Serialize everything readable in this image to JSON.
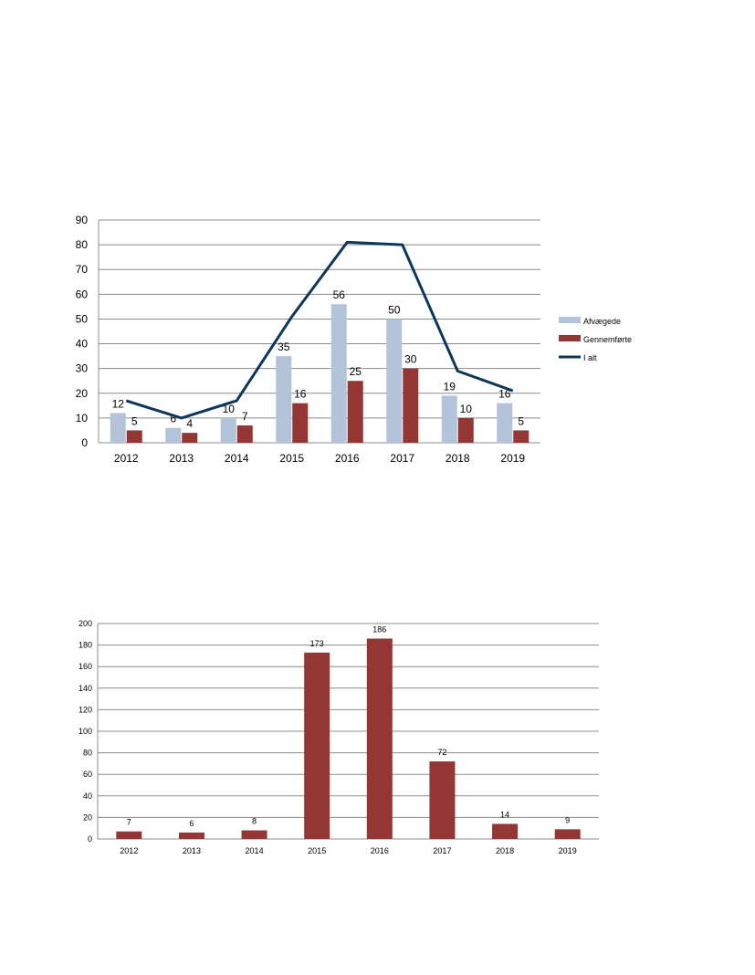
{
  "chart_data": [
    {
      "type": "bar",
      "title": "",
      "xlabel": "",
      "ylabel": "",
      "categories": [
        "2012",
        "2013",
        "2014",
        "2015",
        "2016",
        "2017",
        "2018",
        "2019"
      ],
      "ylim": [
        0,
        90
      ],
      "yticks": [
        "0",
        "10",
        "20",
        "30",
        "40",
        "50",
        "60",
        "70",
        "80",
        "90"
      ],
      "grid": true,
      "legend": "right",
      "series": [
        {
          "name": "Afvægede",
          "type": "bar",
          "color": "#b3c3d9",
          "values": [
            12,
            6,
            10,
            35,
            56,
            50,
            19,
            16
          ],
          "labels": [
            "12",
            "6",
            "10",
            "35",
            "56",
            "50",
            "19",
            "16"
          ]
        },
        {
          "name": "Gennemførte",
          "type": "bar",
          "color": "#943634",
          "values": [
            5,
            4,
            7,
            16,
            25,
            30,
            10,
            5
          ],
          "labels": [
            "5",
            "4",
            "7",
            "16",
            "25",
            "30",
            "10",
            "5"
          ]
        },
        {
          "name": "I alt",
          "type": "line",
          "color": "#0e3659",
          "values": [
            17,
            10,
            17,
            51,
            81,
            80,
            29,
            21
          ]
        }
      ]
    },
    {
      "type": "bar",
      "title": "",
      "xlabel": "",
      "ylabel": "",
      "categories": [
        "2012",
        "2013",
        "2014",
        "2015",
        "2016",
        "2017",
        "2018",
        "2019"
      ],
      "ylim": [
        0,
        200
      ],
      "yticks": [
        "0",
        "20",
        "40",
        "60",
        "80",
        "100",
        "120",
        "140",
        "160",
        "180",
        "200"
      ],
      "grid": true,
      "legend": "none",
      "color": "#943634",
      "values": [
        7,
        6,
        8,
        173,
        186,
        72,
        14,
        9
      ],
      "labels": [
        "7",
        "6",
        "8",
        "173",
        "186",
        "72",
        "14",
        "9"
      ]
    }
  ]
}
